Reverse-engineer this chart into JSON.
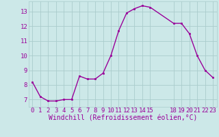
{
  "x": [
    0,
    1,
    2,
    3,
    4,
    5,
    6,
    7,
    8,
    9,
    10,
    11,
    12,
    13,
    14,
    15,
    18,
    19,
    20,
    21,
    22,
    23
  ],
  "y": [
    8.2,
    7.2,
    6.9,
    6.9,
    7.0,
    7.0,
    8.6,
    8.4,
    8.4,
    8.8,
    10.0,
    11.7,
    12.9,
    13.2,
    13.4,
    13.3,
    12.2,
    12.2,
    11.5,
    10.0,
    9.0,
    8.5
  ],
  "line_color": "#990099",
  "marker": "s",
  "marker_size": 2.0,
  "bg_color": "#cce8e8",
  "grid_color": "#aacccc",
  "xlabel": "Windchill (Refroidissement éolien,°C)",
  "xlabel_color": "#990099",
  "xlim": [
    -0.5,
    23.5
  ],
  "ylim": [
    6.5,
    13.7
  ],
  "xticks": [
    0,
    1,
    2,
    3,
    4,
    5,
    6,
    7,
    8,
    9,
    10,
    11,
    12,
    13,
    14,
    15,
    18,
    19,
    20,
    21,
    22,
    23
  ],
  "yticks": [
    7,
    8,
    9,
    10,
    11,
    12,
    13
  ],
  "tick_color": "#990099",
  "tick_fontsize": 6.5,
  "xlabel_fontsize": 7.0,
  "line_width": 1.0
}
